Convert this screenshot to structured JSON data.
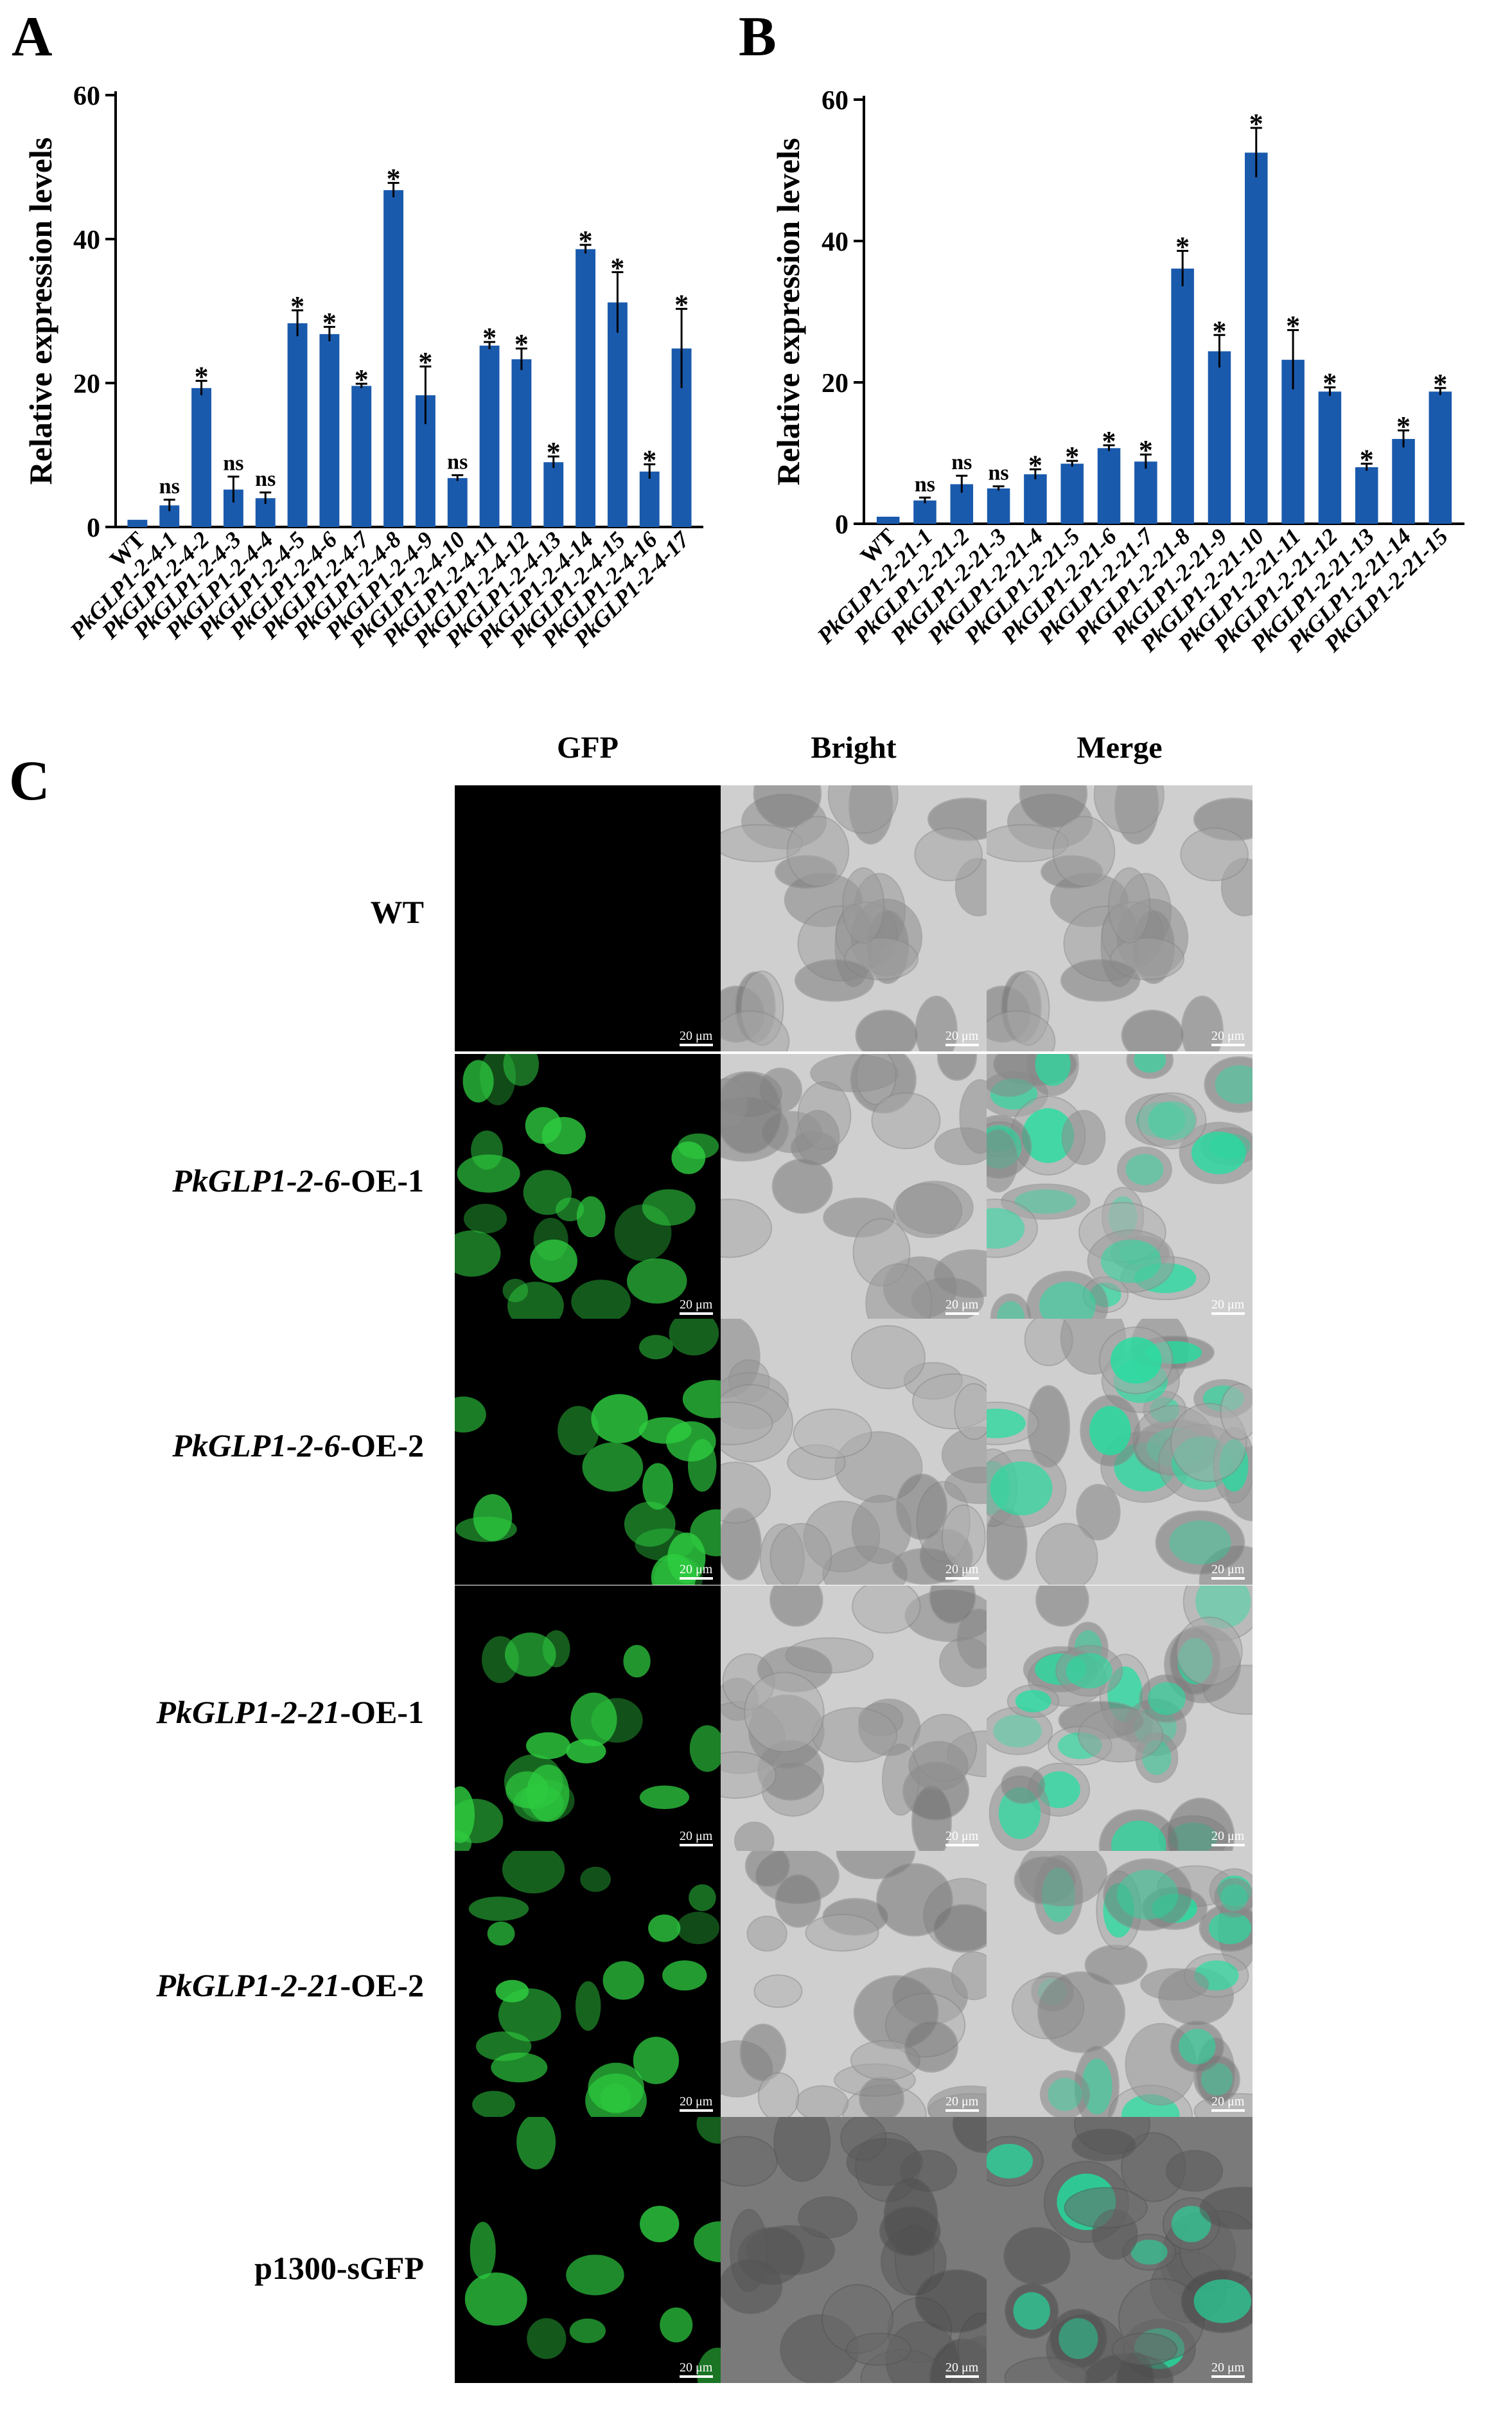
{
  "panel_letters": {
    "a": "A",
    "b": "B",
    "c": "C"
  },
  "chart_data": [
    {
      "type": "bar",
      "panel": "A",
      "ylabel": "Relative expression levels",
      "xlabel": "",
      "ylim": [
        0,
        60
      ],
      "yticks": [
        0,
        20,
        40,
        60
      ],
      "bar_color": "#1a5aad",
      "categories": [
        "WT",
        "PkGLP1-2-4-1",
        "PkGLP1-2-4-2",
        "PkGLP1-2-4-3",
        "PkGLP1-2-4-4",
        "PkGLP1-2-4-5",
        "PkGLP1-2-4-6",
        "PkGLP1-2-4-7",
        "PkGLP1-2-4-8",
        "PkGLP1-2-4-9",
        "PkGLP1-2-4-10",
        "PkGLP1-2-4-11",
        "PkGLP1-2-4-12",
        "PkGLP1-2-4-13",
        "PkGLP1-2-4-14",
        "PkGLP1-2-4-15",
        "PkGLP1-2-4-16",
        "PkGLP1-2-4-17"
      ],
      "values": [
        1.0,
        3.0,
        19.3,
        5.2,
        4.0,
        28.3,
        26.8,
        19.6,
        46.8,
        18.3,
        6.8,
        25.2,
        23.3,
        9.0,
        38.6,
        31.2,
        7.7,
        24.8
      ],
      "errors": [
        0.1,
        0.8,
        1.0,
        1.8,
        0.8,
        1.8,
        1.0,
        0.3,
        1.0,
        4.0,
        0.4,
        0.5,
        1.5,
        0.8,
        0.6,
        4.2,
        1.0,
        5.5
      ],
      "significance": [
        "",
        "ns",
        "*",
        "ns",
        "ns",
        "*",
        "*",
        "*",
        "*",
        "*",
        "ns",
        "*",
        "*",
        "*",
        "*",
        "*",
        "*",
        "*"
      ]
    },
    {
      "type": "bar",
      "panel": "B",
      "ylabel": "Relative expression levels",
      "xlabel": "",
      "ylim": [
        0,
        60
      ],
      "yticks": [
        0,
        20,
        40,
        60
      ],
      "bar_color": "#1a5aad",
      "categories": [
        "WT",
        "PkGLP1-2-21-1",
        "PkGLP1-2-21-2",
        "PkGLP1-2-21-3",
        "PkGLP1-2-21-4",
        "PkGLP1-2-21-5",
        "PkGLP1-2-21-6",
        "PkGLP1-2-21-7",
        "PkGLP1-2-21-8",
        "PkGLP1-2-21-9",
        "PkGLP1-2-21-10",
        "PkGLP1-2-21-11",
        "PkGLP1-2-21-12",
        "PkGLP1-2-21-13",
        "PkGLP1-2-21-14",
        "PkGLP1-2-21-15"
      ],
      "values": [
        1.0,
        3.3,
        5.6,
        5.0,
        7.0,
        8.5,
        10.7,
        8.8,
        36.1,
        24.4,
        52.5,
        23.2,
        18.7,
        8.0,
        12.0,
        18.7
      ],
      "errors": [
        0.1,
        0.4,
        1.2,
        0.3,
        0.7,
        0.4,
        0.4,
        1.0,
        2.5,
        2.3,
        3.5,
        4.2,
        0.6,
        0.5,
        1.2,
        0.5
      ],
      "significance": [
        "",
        "ns",
        "ns",
        "ns",
        "*",
        "*",
        "*",
        "*",
        "*",
        "*",
        "*",
        "*",
        "*",
        "*",
        "*",
        "*"
      ]
    }
  ],
  "micrographs": {
    "columns": [
      "GFP",
      "Bright",
      "Merge"
    ],
    "rows": [
      {
        "label_italic": "",
        "label_plain": "WT",
        "gfp_level": 0.0
      },
      {
        "label_italic": "PkGLP1-2-6",
        "label_plain": "-OE-1",
        "gfp_level": 0.8
      },
      {
        "label_italic": "PkGLP1-2-6",
        "label_plain": "-OE-2",
        "gfp_level": 0.7
      },
      {
        "label_italic": "PkGLP1-2-21",
        "label_plain": "-OE-1",
        "gfp_level": 0.75
      },
      {
        "label_italic": "PkGLP1-2-21",
        "label_plain": "-OE-2",
        "gfp_level": 0.6
      },
      {
        "label_italic": "",
        "label_plain": "p1300-sGFP",
        "gfp_level": 0.5
      }
    ],
    "scale_bar_label": "20 μm",
    "gfp_color": "#2ecc40",
    "merge_color": "#1fe0a0"
  }
}
